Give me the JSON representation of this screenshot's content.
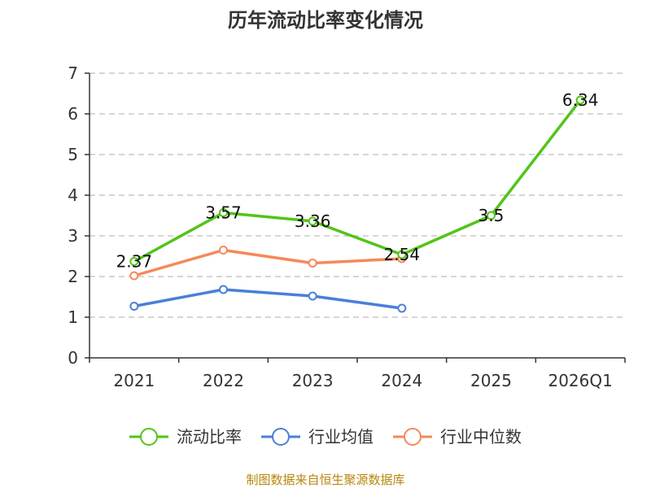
{
  "chart_data": {
    "type": "line",
    "title": "历年流动比率变化情况",
    "categories": [
      "2021",
      "2022",
      "2023",
      "2024",
      "2025",
      "2026Q1"
    ],
    "ylim": [
      0,
      7
    ],
    "yticks": [
      "0",
      "1",
      "2",
      "3",
      "4",
      "5",
      "6",
      "7"
    ],
    "grid": true,
    "legend_position": "bottom",
    "series": [
      {
        "name": "流动比率",
        "color": "#52c41a",
        "values": [
          2.37,
          3.57,
          3.36,
          2.54,
          3.5,
          6.34
        ],
        "labels": [
          "2.37",
          "3.57",
          "3.36",
          "2.54",
          "3.5",
          "6.34"
        ]
      },
      {
        "name": "行业均值",
        "color": "#4a7fd8",
        "values": [
          1.27,
          1.68,
          1.52,
          1.22,
          null,
          null
        ]
      },
      {
        "name": "行业中位数",
        "color": "#f5895a",
        "values": [
          2.02,
          2.65,
          2.33,
          2.44,
          null,
          null
        ]
      }
    ],
    "source": "制图数据来自恒生聚源数据库"
  }
}
